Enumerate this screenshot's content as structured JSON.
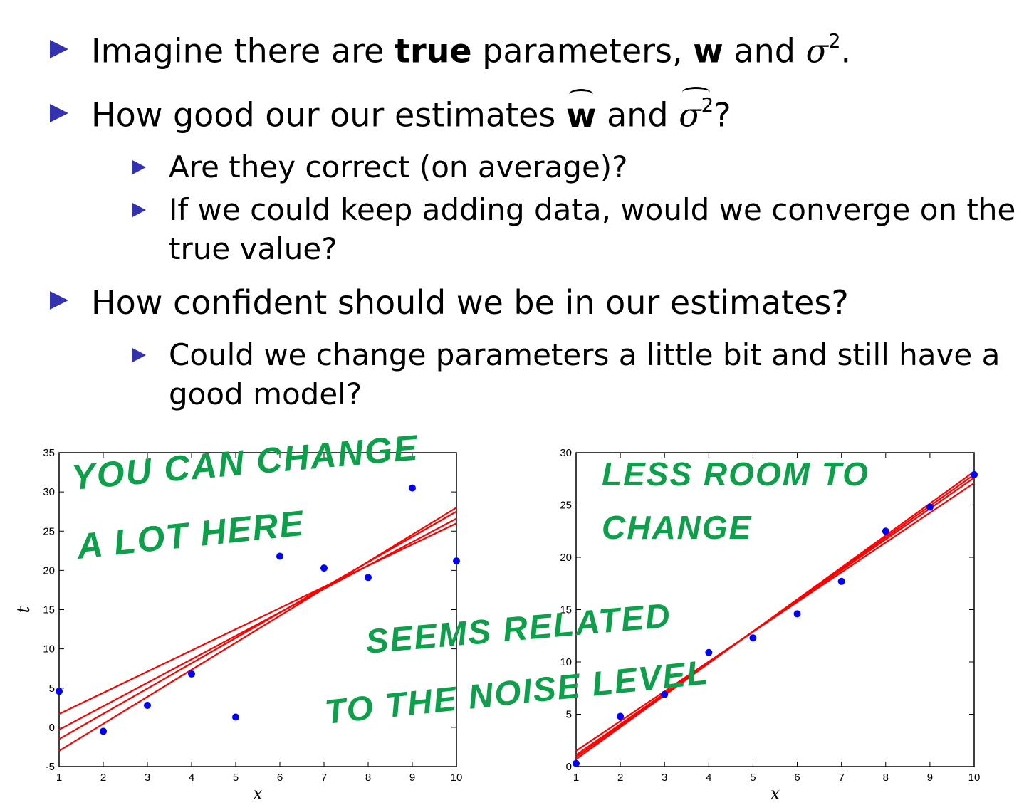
{
  "bullets": {
    "b1": {
      "pre": "Imagine there are ",
      "bold": "true",
      "mid": " parameters, ",
      "w": "w",
      "and": " and ",
      "sigma": "σ",
      "sup": "2",
      "end": "."
    },
    "b2": {
      "pre": "How good our our estimates ",
      "w": "w",
      "and": " and ",
      "sigma": "σ",
      "sup": "2",
      "end": "?"
    },
    "b2a": "Are they correct (on average)?",
    "b2b_line1": "If we could keep adding data, would we converge on the",
    "b2b_line2": "true value?",
    "b3": "How confident should we be in our estimates?",
    "b3a_line1": "Could we change parameters a little bit and still have a",
    "b3a_line2": "good model?"
  },
  "annotations": {
    "left_1": "YOU CAN CHANGE",
    "left_2": "A LOT HERE",
    "right_1": "LESS ROOM TO",
    "right_2": "CHANGE",
    "center_1": "SEEMS RELATED",
    "center_2": "TO THE NOISE LEVEL"
  },
  "colors": {
    "bullet": "#3333b2",
    "points": "#0000ff",
    "lines": "#ff0000",
    "ink": "#0da04a"
  },
  "chart_data": [
    {
      "type": "scatter",
      "xlabel": "x",
      "ylabel": "t",
      "xlim": [
        1,
        10
      ],
      "ylim": [
        -5,
        35
      ],
      "xticks": [
        1,
        2,
        3,
        4,
        5,
        6,
        7,
        8,
        9,
        10
      ],
      "yticks": [
        -5,
        0,
        5,
        10,
        15,
        20,
        25,
        30,
        35
      ],
      "points": {
        "x": [
          1,
          2,
          3,
          4,
          5,
          6,
          7,
          8,
          9,
          10
        ],
        "y": [
          4.6,
          -0.5,
          2.8,
          6.8,
          1.3,
          21.8,
          20.3,
          19.1,
          30.5,
          21.2
        ]
      },
      "lines": [
        {
          "y_at_x1": -3.0,
          "y_at_x10": 28.0
        },
        {
          "y_at_x1": -1.5,
          "y_at_x10": 27.5
        },
        {
          "y_at_x1": -0.3,
          "y_at_x10": 26.6
        },
        {
          "y_at_x1": 1.7,
          "y_at_x10": 26.0
        }
      ]
    },
    {
      "type": "scatter",
      "xlabel": "x",
      "ylabel": "t",
      "xlim": [
        1,
        10
      ],
      "ylim": [
        0,
        30
      ],
      "xticks": [
        1,
        2,
        3,
        4,
        5,
        6,
        7,
        8,
        9,
        10
      ],
      "yticks": [
        0,
        5,
        10,
        15,
        20,
        25,
        30
      ],
      "points": {
        "x": [
          1,
          2,
          3,
          4,
          5,
          6,
          7,
          8,
          9,
          10
        ],
        "y": [
          0.3,
          4.8,
          6.9,
          10.9,
          12.3,
          14.6,
          17.7,
          22.5,
          24.8,
          27.9
        ]
      },
      "lines": [
        {
          "y_at_x1": 0.7,
          "y_at_x10": 28.2
        },
        {
          "y_at_x1": 1.1,
          "y_at_x10": 27.6
        },
        {
          "y_at_x1": 1.5,
          "y_at_x10": 27.1
        },
        {
          "y_at_x1": 0.9,
          "y_at_x10": 27.9
        }
      ]
    }
  ]
}
